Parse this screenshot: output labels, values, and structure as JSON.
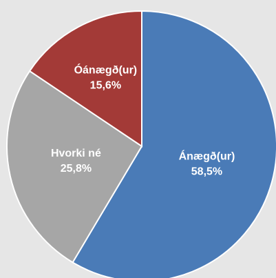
{
  "chart_data": {
    "type": "pie",
    "categories": [
      "Ánægð(ur)",
      "Hvorki né",
      "Óánægð(ur)"
    ],
    "values": [
      58.5,
      25.8,
      15.6
    ],
    "value_labels": [
      "58,5%",
      "25,8%",
      "15,6%"
    ],
    "colors": [
      "#4a7bb7",
      "#a6a6a6",
      "#a33a37"
    ]
  }
}
